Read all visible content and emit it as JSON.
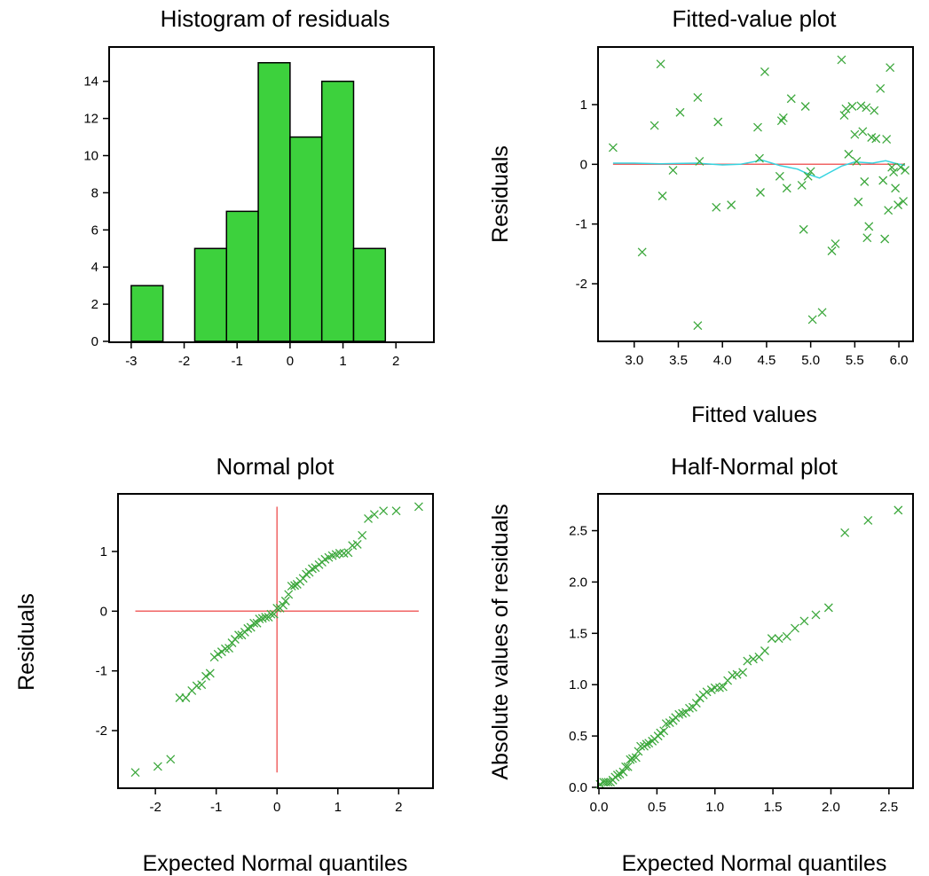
{
  "chart_data": [
    {
      "type": "bar",
      "title": "Histogram of residuals",
      "xlabel": "",
      "ylabel": "",
      "bins": [
        {
          "x0": -3.0,
          "x1": -2.4,
          "count": 3
        },
        {
          "x0": -2.4,
          "x1": -1.8,
          "count": 0
        },
        {
          "x0": -1.8,
          "x1": -1.2,
          "count": 5
        },
        {
          "x0": -1.2,
          "x1": -0.6,
          "count": 7
        },
        {
          "x0": -0.6,
          "x1": 0.0,
          "count": 15
        },
        {
          "x0": 0.0,
          "x1": 0.6,
          "count": 11
        },
        {
          "x0": 0.6,
          "x1": 1.2,
          "count": 14
        },
        {
          "x0": 1.2,
          "x1": 1.8,
          "count": 5
        }
      ],
      "xlim": [
        -3.4,
        2.7
      ],
      "ylim": [
        0,
        15.8
      ],
      "xticks": [
        -3,
        -2,
        -1,
        0,
        1,
        2
      ],
      "yticks": [
        0,
        2,
        4,
        6,
        8,
        10,
        12,
        14
      ],
      "colors": {
        "bar": "#3dd13d"
      }
    },
    {
      "type": "scatter",
      "title": "Fitted-value plot",
      "xlabel": "Fitted values",
      "ylabel": "Residuals",
      "xlim": [
        2.6,
        6.15
      ],
      "ylim": [
        -2.95,
        1.95
      ],
      "xticks": [
        3.0,
        3.5,
        4.0,
        4.5,
        5.0,
        5.5,
        6.0
      ],
      "xtick_labels": [
        "3.0",
        "3.5",
        "4.0",
        "4.5",
        "5.0",
        "5.5",
        "6.0"
      ],
      "yticks": [
        -2,
        -1,
        0,
        1
      ],
      "points": [
        [
          2.76,
          0.28
        ],
        [
          3.09,
          -1.47
        ],
        [
          3.23,
          0.65
        ],
        [
          3.3,
          1.68
        ],
        [
          3.32,
          -0.53
        ],
        [
          3.44,
          -0.1
        ],
        [
          3.52,
          0.87
        ],
        [
          3.72,
          1.12
        ],
        [
          3.74,
          0.05
        ],
        [
          3.72,
          -2.7
        ],
        [
          3.93,
          -0.72
        ],
        [
          3.95,
          0.71
        ],
        [
          4.1,
          -0.68
        ],
        [
          4.4,
          0.62
        ],
        [
          4.42,
          0.1
        ],
        [
          4.43,
          -0.47
        ],
        [
          4.48,
          1.55
        ],
        [
          4.65,
          -0.2
        ],
        [
          4.67,
          0.73
        ],
        [
          4.69,
          0.78
        ],
        [
          4.73,
          -0.4
        ],
        [
          4.78,
          1.1
        ],
        [
          4.9,
          -0.35
        ],
        [
          4.92,
          -1.09
        ],
        [
          4.94,
          0.97
        ],
        [
          4.97,
          -0.2
        ],
        [
          5.0,
          -0.12
        ],
        [
          5.02,
          -2.6
        ],
        [
          5.13,
          -2.48
        ],
        [
          5.24,
          -1.45
        ],
        [
          5.28,
          -1.33
        ],
        [
          5.35,
          1.75
        ],
        [
          5.38,
          0.82
        ],
        [
          5.4,
          0.93
        ],
        [
          5.43,
          0.17
        ],
        [
          5.47,
          0.97
        ],
        [
          5.5,
          0.5
        ],
        [
          5.52,
          0.05
        ],
        [
          5.54,
          -0.63
        ],
        [
          5.57,
          0.98
        ],
        [
          5.59,
          0.55
        ],
        [
          5.61,
          -0.29
        ],
        [
          5.63,
          0.95
        ],
        [
          5.64,
          -1.23
        ],
        [
          5.66,
          -1.04
        ],
        [
          5.69,
          0.45
        ],
        [
          5.72,
          0.9
        ],
        [
          5.74,
          0.43
        ],
        [
          5.79,
          1.27
        ],
        [
          5.82,
          -0.27
        ],
        [
          5.84,
          -1.25
        ],
        [
          5.86,
          0.42
        ],
        [
          5.88,
          -0.77
        ],
        [
          5.9,
          1.62
        ],
        [
          5.92,
          -0.05
        ],
        [
          5.94,
          -0.13
        ],
        [
          5.96,
          -0.4
        ],
        [
          5.99,
          -0.68
        ],
        [
          6.02,
          -0.05
        ],
        [
          6.05,
          -0.62
        ],
        [
          6.07,
          -0.1
        ]
      ],
      "lines": [
        {
          "role": "reference",
          "color": "#f06464",
          "points": [
            [
              2.76,
              0.0
            ],
            [
              6.07,
              0.0
            ]
          ]
        },
        {
          "role": "smooth",
          "color": "#36d4e0",
          "points": [
            [
              2.76,
              0.02
            ],
            [
              3.0,
              0.02
            ],
            [
              3.3,
              0.01
            ],
            [
              3.7,
              0.02
            ],
            [
              4.0,
              -0.01
            ],
            [
              4.2,
              0.0
            ],
            [
              4.45,
              0.07
            ],
            [
              4.65,
              -0.02
            ],
            [
              4.85,
              -0.08
            ],
            [
              5.0,
              -0.18
            ],
            [
              5.1,
              -0.23
            ],
            [
              5.2,
              -0.15
            ],
            [
              5.35,
              -0.03
            ],
            [
              5.5,
              0.04
            ],
            [
              5.7,
              0.02
            ],
            [
              5.85,
              0.06
            ],
            [
              5.95,
              0.02
            ],
            [
              6.07,
              -0.02
            ]
          ]
        }
      ],
      "colors": {
        "marker": "#3da83d",
        "reference": "#f06464",
        "smooth": "#36d4e0"
      }
    },
    {
      "type": "scatter",
      "title": "Normal plot",
      "xlabel": "Expected Normal quantiles",
      "ylabel": "Residuals",
      "xlim": [
        -2.6,
        2.55
      ],
      "ylim": [
        -2.95,
        1.95
      ],
      "xticks": [
        -2,
        -1,
        0,
        1,
        2
      ],
      "yticks": [
        -2,
        -1,
        0,
        1
      ],
      "points": [
        [
          -2.33,
          -2.7
        ],
        [
          -1.96,
          -2.6
        ],
        [
          -1.75,
          -2.48
        ],
        [
          -1.6,
          -1.45
        ],
        [
          -1.5,
          -1.45
        ],
        [
          -1.4,
          -1.33
        ],
        [
          -1.32,
          -1.25
        ],
        [
          -1.24,
          -1.23
        ],
        [
          -1.17,
          -1.09
        ],
        [
          -1.1,
          -1.04
        ],
        [
          -1.03,
          -0.77
        ],
        [
          -0.97,
          -0.72
        ],
        [
          -0.91,
          -0.68
        ],
        [
          -0.85,
          -0.63
        ],
        [
          -0.79,
          -0.62
        ],
        [
          -0.74,
          -0.53
        ],
        [
          -0.69,
          -0.47
        ],
        [
          -0.63,
          -0.4
        ],
        [
          -0.58,
          -0.4
        ],
        [
          -0.53,
          -0.35
        ],
        [
          -0.48,
          -0.29
        ],
        [
          -0.43,
          -0.27
        ],
        [
          -0.38,
          -0.2
        ],
        [
          -0.33,
          -0.2
        ],
        [
          -0.29,
          -0.13
        ],
        [
          -0.24,
          -0.12
        ],
        [
          -0.19,
          -0.1
        ],
        [
          -0.14,
          -0.1
        ],
        [
          -0.1,
          -0.05
        ],
        [
          -0.05,
          -0.05
        ],
        [
          0.0,
          0.05
        ],
        [
          0.05,
          0.05
        ],
        [
          0.1,
          0.1
        ],
        [
          0.14,
          0.17
        ],
        [
          0.19,
          0.28
        ],
        [
          0.24,
          0.42
        ],
        [
          0.29,
          0.43
        ],
        [
          0.33,
          0.45
        ],
        [
          0.38,
          0.5
        ],
        [
          0.43,
          0.55
        ],
        [
          0.48,
          0.62
        ],
        [
          0.53,
          0.65
        ],
        [
          0.58,
          0.71
        ],
        [
          0.63,
          0.73
        ],
        [
          0.69,
          0.78
        ],
        [
          0.74,
          0.82
        ],
        [
          0.79,
          0.87
        ],
        [
          0.85,
          0.9
        ],
        [
          0.91,
          0.93
        ],
        [
          0.97,
          0.95
        ],
        [
          1.03,
          0.97
        ],
        [
          1.1,
          0.97
        ],
        [
          1.17,
          0.98
        ],
        [
          1.24,
          1.1
        ],
        [
          1.32,
          1.12
        ],
        [
          1.4,
          1.27
        ],
        [
          1.5,
          1.55
        ],
        [
          1.6,
          1.62
        ],
        [
          1.75,
          1.68
        ],
        [
          1.96,
          1.68
        ],
        [
          2.33,
          1.75
        ]
      ],
      "lines": [
        {
          "role": "reference-horizontal",
          "color": "#f06464",
          "points": [
            [
              -2.33,
              0.0
            ],
            [
              2.33,
              0.0
            ]
          ]
        },
        {
          "role": "reference-vertical",
          "color": "#f06464",
          "points": [
            [
              0.0,
              -2.7
            ],
            [
              0.0,
              1.75
            ]
          ]
        }
      ],
      "colors": {
        "marker": "#3da83d",
        "reference": "#f06464"
      }
    },
    {
      "type": "scatter",
      "title": "Half-Normal plot",
      "xlabel": "Expected Normal quantiles",
      "ylabel": "Absolute values of residuals",
      "xlim": [
        0.0,
        2.7
      ],
      "ylim": [
        0.0,
        2.85
      ],
      "xticks": [
        0.0,
        0.5,
        1.0,
        1.5,
        2.0,
        2.5
      ],
      "xtick_labels": [
        "0.0",
        "0.5",
        "1.0",
        "1.5",
        "2.0",
        "2.5"
      ],
      "yticks": [
        0.0,
        0.5,
        1.0,
        1.5,
        2.0,
        2.5
      ],
      "ytick_labels": [
        "0.0",
        "0.5",
        "1.0",
        "1.5",
        "2.0",
        "2.5"
      ],
      "points": [
        [
          0.01,
          0.03
        ],
        [
          0.04,
          0.05
        ],
        [
          0.06,
          0.05
        ],
        [
          0.08,
          0.05
        ],
        [
          0.1,
          0.05
        ],
        [
          0.12,
          0.07
        ],
        [
          0.14,
          0.1
        ],
        [
          0.16,
          0.12
        ],
        [
          0.18,
          0.13
        ],
        [
          0.21,
          0.15
        ],
        [
          0.23,
          0.2
        ],
        [
          0.25,
          0.2
        ],
        [
          0.27,
          0.27
        ],
        [
          0.29,
          0.28
        ],
        [
          0.32,
          0.29
        ],
        [
          0.34,
          0.35
        ],
        [
          0.36,
          0.4
        ],
        [
          0.39,
          0.4
        ],
        [
          0.41,
          0.42
        ],
        [
          0.43,
          0.43
        ],
        [
          0.46,
          0.45
        ],
        [
          0.48,
          0.47
        ],
        [
          0.51,
          0.5
        ],
        [
          0.53,
          0.53
        ],
        [
          0.56,
          0.55
        ],
        [
          0.58,
          0.62
        ],
        [
          0.61,
          0.63
        ],
        [
          0.64,
          0.65
        ],
        [
          0.66,
          0.68
        ],
        [
          0.69,
          0.71
        ],
        [
          0.72,
          0.72
        ],
        [
          0.75,
          0.73
        ],
        [
          0.78,
          0.77
        ],
        [
          0.81,
          0.78
        ],
        [
          0.84,
          0.82
        ],
        [
          0.87,
          0.87
        ],
        [
          0.9,
          0.9
        ],
        [
          0.93,
          0.93
        ],
        [
          0.97,
          0.95
        ],
        [
          1.0,
          0.97
        ],
        [
          1.04,
          0.97
        ],
        [
          1.07,
          0.98
        ],
        [
          1.11,
          1.04
        ],
        [
          1.15,
          1.09
        ],
        [
          1.19,
          1.1
        ],
        [
          1.24,
          1.12
        ],
        [
          1.28,
          1.23
        ],
        [
          1.33,
          1.25
        ],
        [
          1.38,
          1.27
        ],
        [
          1.43,
          1.33
        ],
        [
          1.49,
          1.45
        ],
        [
          1.55,
          1.45
        ],
        [
          1.62,
          1.47
        ],
        [
          1.69,
          1.55
        ],
        [
          1.77,
          1.62
        ],
        [
          1.87,
          1.68
        ],
        [
          1.98,
          1.75
        ],
        [
          2.12,
          2.48
        ],
        [
          2.32,
          2.6
        ],
        [
          2.58,
          2.7
        ]
      ],
      "colors": {
        "marker": "#3da83d"
      }
    }
  ]
}
